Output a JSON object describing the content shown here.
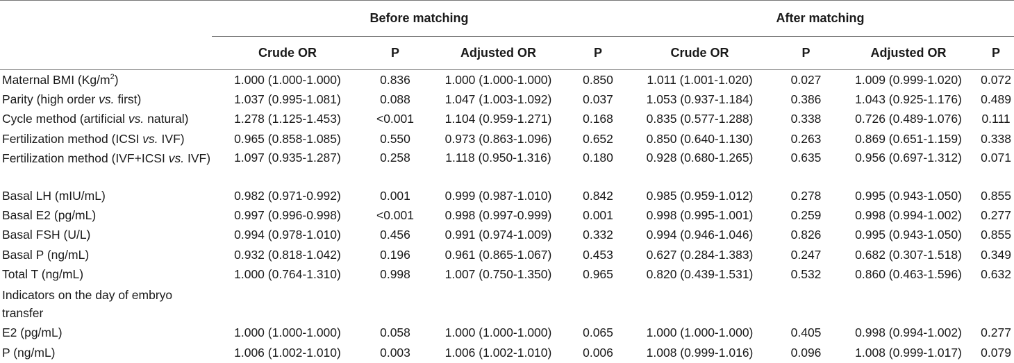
{
  "groups": {
    "before": "Before matching",
    "after": "After matching"
  },
  "columns": [
    "Crude OR",
    "P",
    "Adjusted OR",
    "P",
    "Crude OR",
    "P",
    "Adjusted OR",
    "P"
  ],
  "rows": [
    {
      "label_main": "Maternal BMI (Kg/m",
      "label_sup": "2",
      "label_end": ")",
      "cells": [
        "1.000 (1.000-1.000)",
        "0.836",
        "1.000 (1.000-1.000)",
        "0.850",
        "1.011 (1.001-1.020)",
        "0.027",
        "1.009 (0.999-1.020)",
        "0.072"
      ]
    },
    {
      "label_main": "Parity (high order ",
      "label_em": "vs.",
      "label_end": " first)",
      "cells": [
        "1.037 (0.995-1.081)",
        "0.088",
        "1.047 (1.003-1.092)",
        "0.037",
        "1.053 (0.937-1.184)",
        "0.386",
        "1.043 (0.925-1.176)",
        "0.489"
      ]
    },
    {
      "label_main": "Cycle method (artificial ",
      "label_em": "vs.",
      "label_end": " natural)",
      "cells": [
        "1.278 (1.125-1.453)",
        "<0.001",
        "1.104 (0.959-1.271)",
        "0.168",
        "0.835 (0.577-1.288)",
        "0.338",
        "0.726 (0.489-1.076)",
        "0.111"
      ]
    },
    {
      "label_main": "Fertilization method (ICSI ",
      "label_em": "vs.",
      "label_end": " IVF)",
      "cells": [
        "0.965 (0.858-1.085)",
        "0.550",
        "0.973 (0.863-1.096)",
        "0.652",
        "0.850 (0.640-1.130)",
        "0.263",
        "0.869 (0.651-1.159)",
        "0.338"
      ]
    },
    {
      "label_main": "Fertilization method (IVF+ICSI ",
      "label_em": "vs.",
      "label_end": " IVF)",
      "cells": [
        "1.097 (0.935-1.287)",
        "0.258",
        "1.118 (0.950-1.316)",
        "0.180",
        "0.928 (0.680-1.265)",
        "0.635",
        "0.956 (0.697-1.312)",
        "0.071"
      ]
    },
    {
      "label_main": "Basal LH (mIU/mL)",
      "cells": [
        "0.982 (0.971-0.992)",
        "0.001",
        "0.999 (0.987-1.010)",
        "0.842",
        "0.985 (0.959-1.012)",
        "0.278",
        "0.995 (0.943-1.050)",
        "0.855"
      ]
    },
    {
      "label_main": "Basal E2 (pg/mL)",
      "cells": [
        "0.997 (0.996-0.998)",
        "<0.001",
        "0.998 (0.997-0.999)",
        "0.001",
        "0.998 (0.995-1.001)",
        "0.259",
        "0.998 (0.994-1.002)",
        "0.277"
      ]
    },
    {
      "label_main": "Basal FSH (U/L)",
      "cells": [
        "0.994 (0.978-1.010)",
        "0.456",
        "0.991 (0.974-1.009)",
        "0.332",
        "0.994 (0.946-1.046)",
        "0.826",
        "0.995 (0.943-1.050)",
        "0.855"
      ]
    },
    {
      "label_main": "Basal P (ng/mL)",
      "cells": [
        "0.932 (0.818-1.042)",
        "0.196",
        "0.961 (0.865-1.067)",
        "0.453",
        "0.627 (0.284-1.383)",
        "0.247",
        "0.682 (0.307-1.518)",
        "0.349"
      ]
    },
    {
      "label_main": "Total T (ng/mL)",
      "cells": [
        "1.000 (0.764-1.310)",
        "0.998",
        "1.007 (0.750-1.350)",
        "0.965",
        "0.820 (0.439-1.531)",
        "0.532",
        "0.860 (0.463-1.596)",
        "0.632"
      ]
    },
    {
      "label_main": "Indicators on the day of embryo transfer",
      "section": true,
      "cells": [
        "",
        "",
        "",
        "",
        "",
        "",
        "",
        ""
      ]
    },
    {
      "label_main": "E2 (pg/mL)",
      "cells": [
        "1.000 (1.000-1.000)",
        "0.058",
        "1.000 (1.000-1.000)",
        "0.065",
        "1.000 (1.000-1.000)",
        "0.405",
        "0.998 (0.994-1.002)",
        "0.277"
      ]
    },
    {
      "label_main": "P (ng/mL)",
      "cells": [
        "1.006 (1.002-1.010)",
        "0.003",
        "1.006 (1.002-1.010)",
        "0.006",
        "1.008 (0.999-1.016)",
        "0.096",
        "1.008 (0.999-1.017)",
        "0.079"
      ]
    }
  ]
}
